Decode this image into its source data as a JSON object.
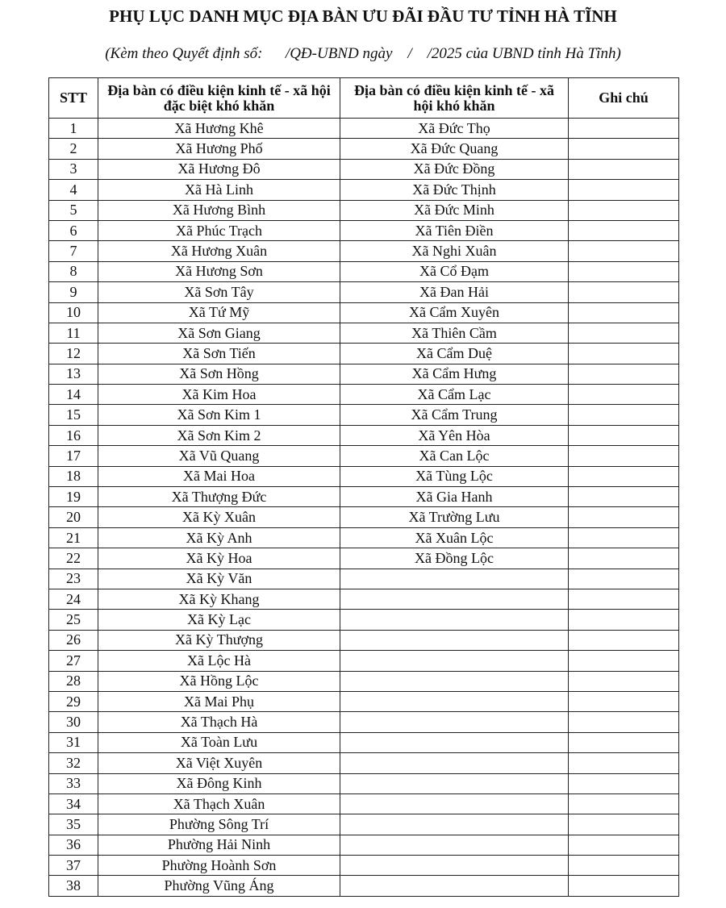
{
  "header": {
    "title": "PHỤ LỤC DANH MỤC ĐỊA BÀN ƯU ĐÃI ĐẦU TƯ TỈNH HÀ TĨNH",
    "subtitle": "(Kèm theo Quyết định số:      /QĐ-UBND ngày    /    /2025 của UBND tỉnh Hà Tĩnh)"
  },
  "table": {
    "columns": [
      "STT",
      "Địa bàn có điều kiện kinh tế - xã hội đặc biệt khó khăn",
      "Địa bàn có điều kiện kinh tế - xã hội khó khăn",
      "Ghi chú"
    ],
    "rows": [
      [
        1,
        "Xã Hương Khê",
        "Xã Đức Thọ"
      ],
      [
        2,
        "Xã Hương Phố",
        "Xã Đức Quang"
      ],
      [
        3,
        "Xã Hương Đô",
        "Xã Đức Đồng"
      ],
      [
        4,
        "Xã Hà Linh",
        "Xã Đức Thịnh"
      ],
      [
        5,
        "Xã Hương Bình",
        "Xã Đức Minh"
      ],
      [
        6,
        "Xã Phúc Trạch",
        "Xã Tiên Điền"
      ],
      [
        7,
        "Xã Hương Xuân",
        "Xã Nghi Xuân"
      ],
      [
        8,
        "Xã Hương Sơn",
        "Xã Cổ Đạm"
      ],
      [
        9,
        "Xã Sơn Tây",
        "Xã Đan Hải"
      ],
      [
        10,
        "Xã Tứ Mỹ",
        "Xã Cẩm Xuyên"
      ],
      [
        11,
        "Xã Sơn Giang",
        "Xã Thiên Cầm"
      ],
      [
        12,
        "Xã Sơn Tiến",
        "Xã Cẩm Duệ"
      ],
      [
        13,
        "Xã Sơn Hồng",
        "Xã Cẩm Hưng"
      ],
      [
        14,
        "Xã Kim Hoa",
        "Xã Cẩm Lạc"
      ],
      [
        15,
        "Xã Sơn Kim 1",
        "Xã Cẩm Trung"
      ],
      [
        16,
        "Xã Sơn Kim 2",
        "Xã Yên Hòa"
      ],
      [
        17,
        "Xã Vũ Quang",
        "Xã Can Lộc"
      ],
      [
        18,
        "Xã Mai Hoa",
        "Xã Tùng Lộc"
      ],
      [
        19,
        "Xã Thượng Đức",
        "Xã Gia Hanh"
      ],
      [
        20,
        "Xã Kỳ Xuân",
        "Xã Trường Lưu"
      ],
      [
        21,
        "Xã Kỳ Anh",
        "Xã Xuân Lộc"
      ],
      [
        22,
        "Xã Kỳ Hoa",
        "Xã Đồng Lộc"
      ],
      [
        23,
        "Xã Kỳ Văn"
      ],
      [
        24,
        "Xã Kỳ Khang"
      ],
      [
        25,
        "Xã Kỳ Lạc"
      ],
      [
        26,
        "Xã Kỳ Thượng"
      ],
      [
        27,
        "Xã Lộc Hà"
      ],
      [
        28,
        "Xã Hồng Lộc"
      ],
      [
        29,
        "Xã Mai Phụ"
      ],
      [
        30,
        "Xã Thạch Hà"
      ],
      [
        31,
        "Xã Toàn Lưu"
      ],
      [
        32,
        "Xã Việt Xuyên"
      ],
      [
        33,
        "Xã Đông Kinh"
      ],
      [
        34,
        "Xã Thạch Xuân"
      ],
      [
        35,
        "Phường Sông Trí"
      ],
      [
        36,
        "Phường Hải Ninh"
      ],
      [
        37,
        "Phường Hoành Sơn"
      ],
      [
        38,
        "Phường Vũng Áng"
      ]
    ]
  }
}
